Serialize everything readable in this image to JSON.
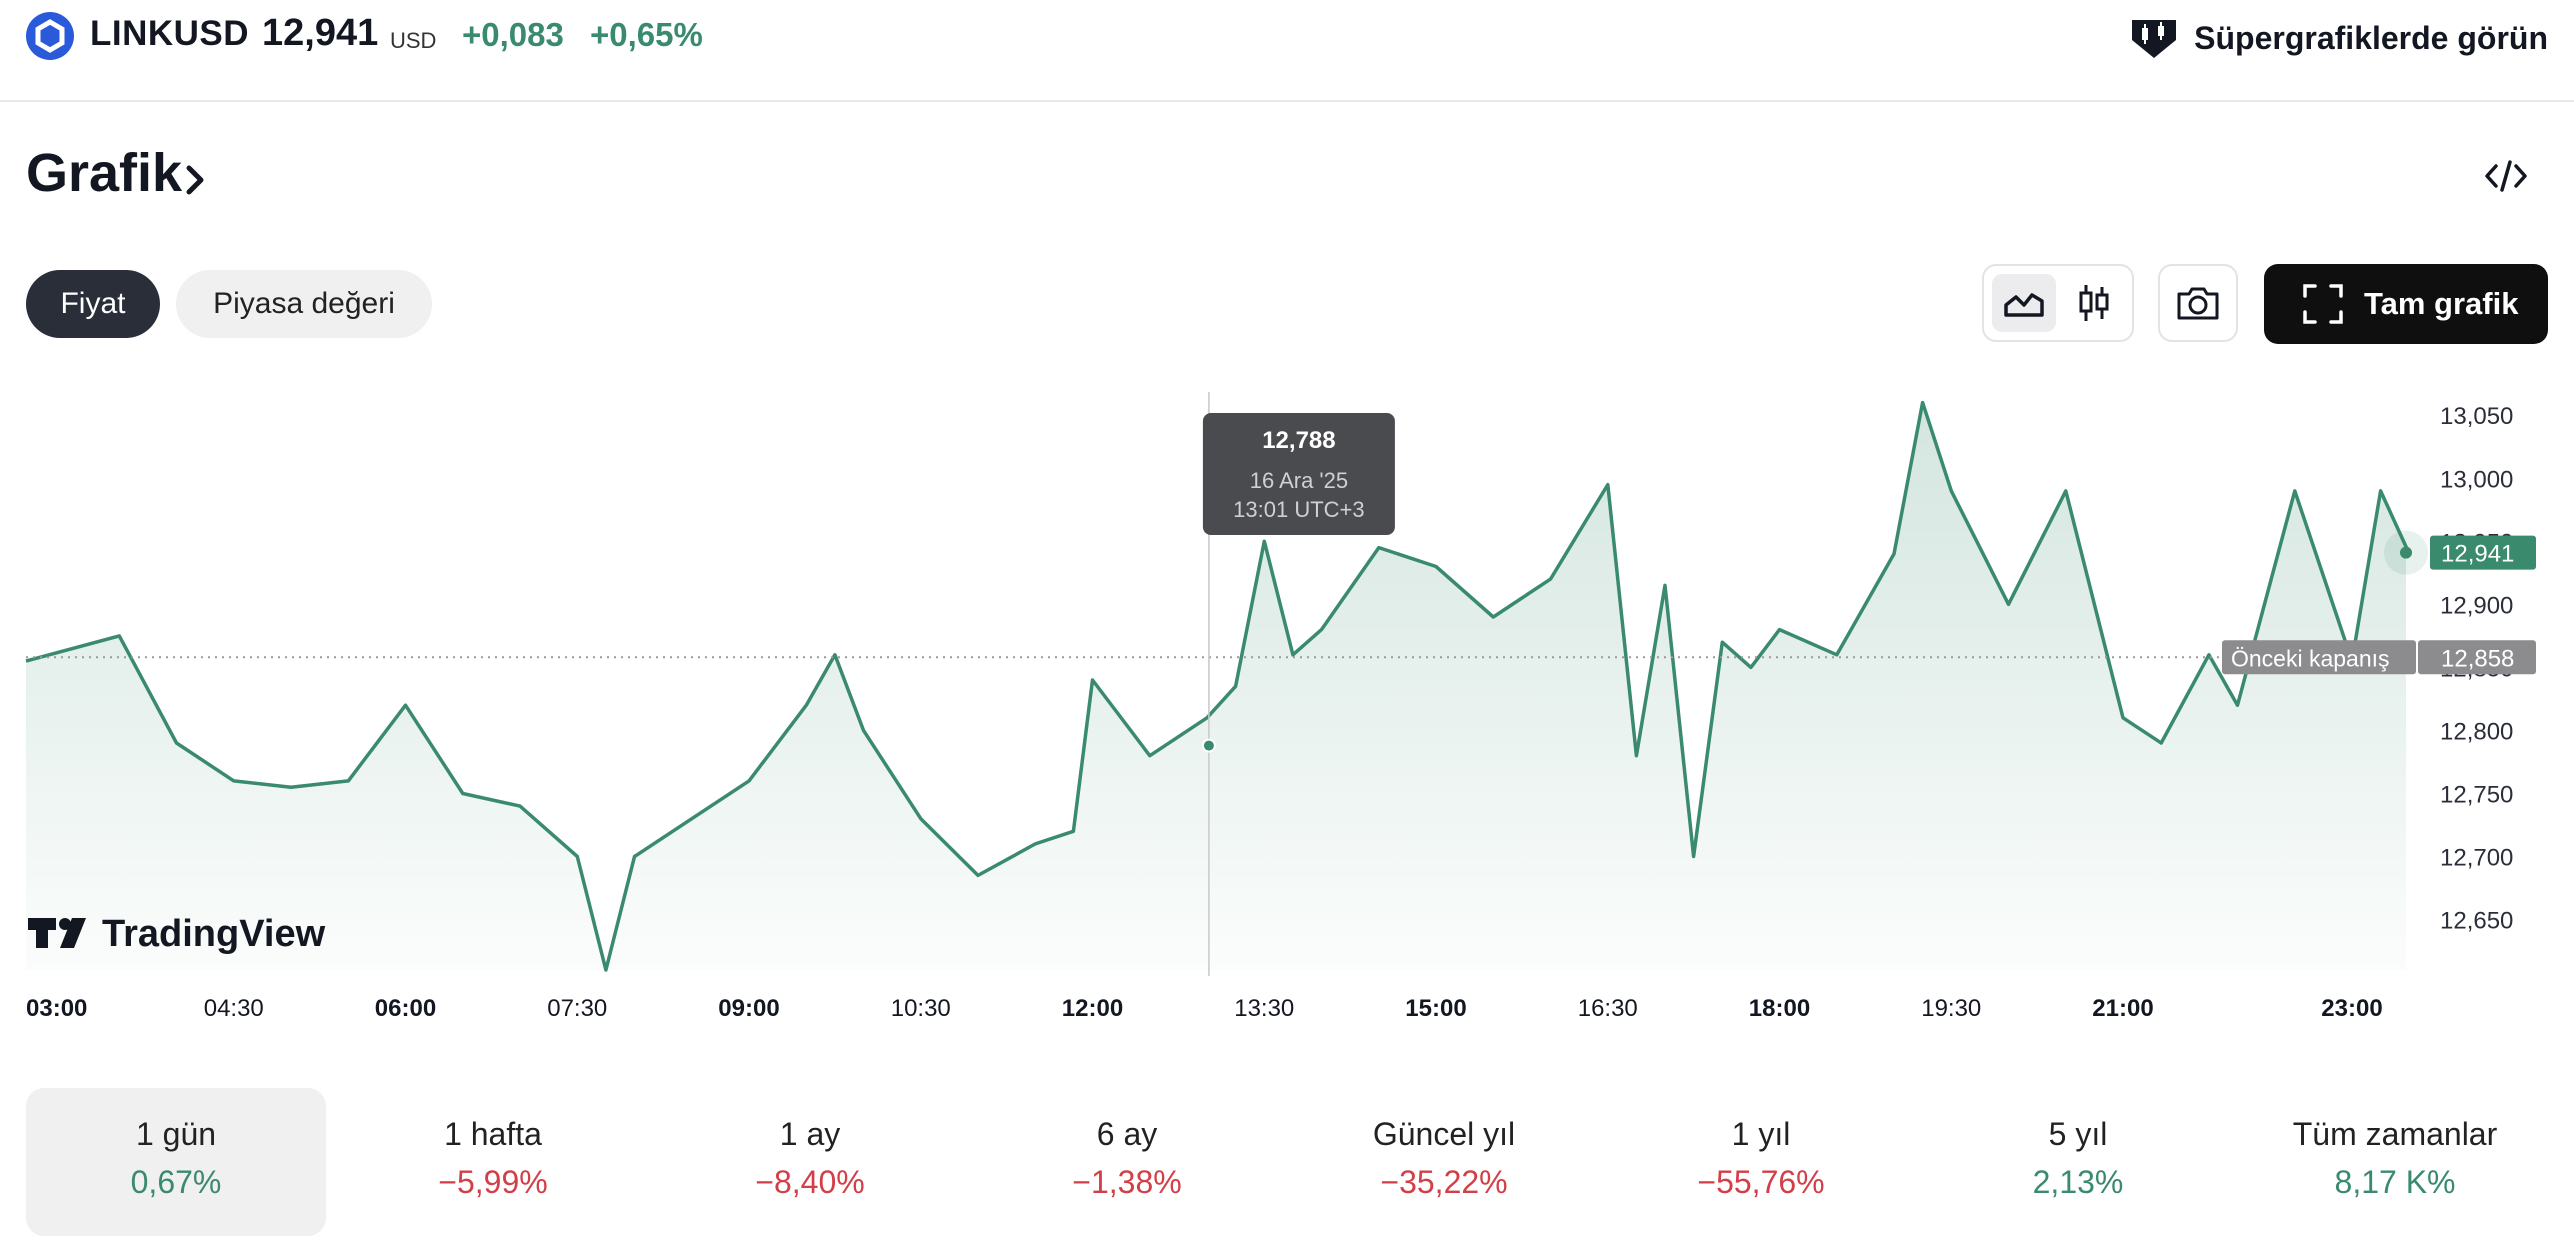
{
  "header": {
    "symbol": "LINKUSD",
    "price": "12,941",
    "currency": "USD",
    "change": "+0,083",
    "change_pct": "+0,65%",
    "supercharts_label": "Süpergrafiklerde görün"
  },
  "section": {
    "title": "Grafik"
  },
  "tabs": {
    "price": "Fiyat",
    "market_cap": "Piyasa değeri"
  },
  "toolbar": {
    "full_chart_label": "Tam grafik"
  },
  "colors": {
    "line": "#3a8a6e",
    "up": "#3a8a6e",
    "down": "#d33f48",
    "tooltip_bg": "#4a4b4f"
  },
  "chart_data": {
    "type": "area",
    "x_ticks": [
      "03:00",
      "04:30",
      "06:00",
      "07:30",
      "09:00",
      "10:30",
      "12:00",
      "13:30",
      "15:00",
      "16:30",
      "18:00",
      "19:30",
      "21:00",
      "23:00"
    ],
    "y_ticks": [
      "13,050",
      "13,000",
      "12,950",
      "12,900",
      "12,850",
      "12,800",
      "12,750",
      "12,700",
      "12,650"
    ],
    "ylim": [
      12.61,
      13.07
    ],
    "series": [
      {
        "x": [
          "03:00",
          "03:30",
          "04:00",
          "04:30",
          "05:00",
          "05:30",
          "06:00",
          "06:30",
          "07:00",
          "07:30",
          "07:45",
          "08:00",
          "08:30",
          "09:00",
          "09:30",
          "09:45",
          "10:00",
          "10:30",
          "11:00",
          "11:30",
          "11:50",
          "12:00",
          "12:30",
          "13:00",
          "13:15",
          "13:30",
          "13:45",
          "14:00",
          "14:30",
          "15:00",
          "15:30",
          "16:00",
          "16:30",
          "16:45",
          "17:00",
          "17:15",
          "17:30",
          "17:45",
          "18:00",
          "18:30",
          "19:00",
          "19:15",
          "19:30",
          "20:00",
          "20:30",
          "21:00",
          "21:20",
          "21:45",
          "22:00",
          "22:30",
          "23:00",
          "23:15",
          "23:30",
          "23:45"
        ],
        "values": [
          12.855,
          12.875,
          12.79,
          12.76,
          12.755,
          12.76,
          12.82,
          12.75,
          12.74,
          12.7,
          12.61,
          12.7,
          12.73,
          12.76,
          12.82,
          12.86,
          12.8,
          12.73,
          12.685,
          12.71,
          12.72,
          12.84,
          12.78,
          12.81,
          12.835,
          12.95,
          12.86,
          12.88,
          12.945,
          12.93,
          12.89,
          12.92,
          12.995,
          12.78,
          12.915,
          12.7,
          12.87,
          12.85,
          12.88,
          12.86,
          12.94,
          13.06,
          12.99,
          12.9,
          12.99,
          12.81,
          12.79,
          12.86,
          12.82,
          12.99,
          12.855,
          12.99,
          12.94,
          12.941
        ]
      }
    ],
    "last_value_label": "12,941",
    "prev_close": 12.858,
    "prev_close_label": "12,858",
    "prev_close_text": "Önceki kapanış",
    "crosshair": {
      "x": "13:01",
      "value": 12.788
    },
    "tooltip": {
      "value": "12,788",
      "date": "16 Ara '25",
      "time": "13:01 UTC+3"
    },
    "watermark": "TradingView",
    "grid": false
  },
  "periods": [
    {
      "label": "1 gün",
      "value": "0,67%",
      "dir": "up"
    },
    {
      "label": "1 hafta",
      "value": "−5,99%",
      "dir": "down"
    },
    {
      "label": "1 ay",
      "value": "−8,40%",
      "dir": "down"
    },
    {
      "label": "6 ay",
      "value": "−1,38%",
      "dir": "down"
    },
    {
      "label": "Güncel yıl",
      "value": "−35,22%",
      "dir": "down"
    },
    {
      "label": "1 yıl",
      "value": "−55,76%",
      "dir": "down"
    },
    {
      "label": "5 yıl",
      "value": "2,13%",
      "dir": "up"
    },
    {
      "label": "Tüm zamanlar",
      "value": "8,17 K%",
      "dir": "up"
    }
  ]
}
